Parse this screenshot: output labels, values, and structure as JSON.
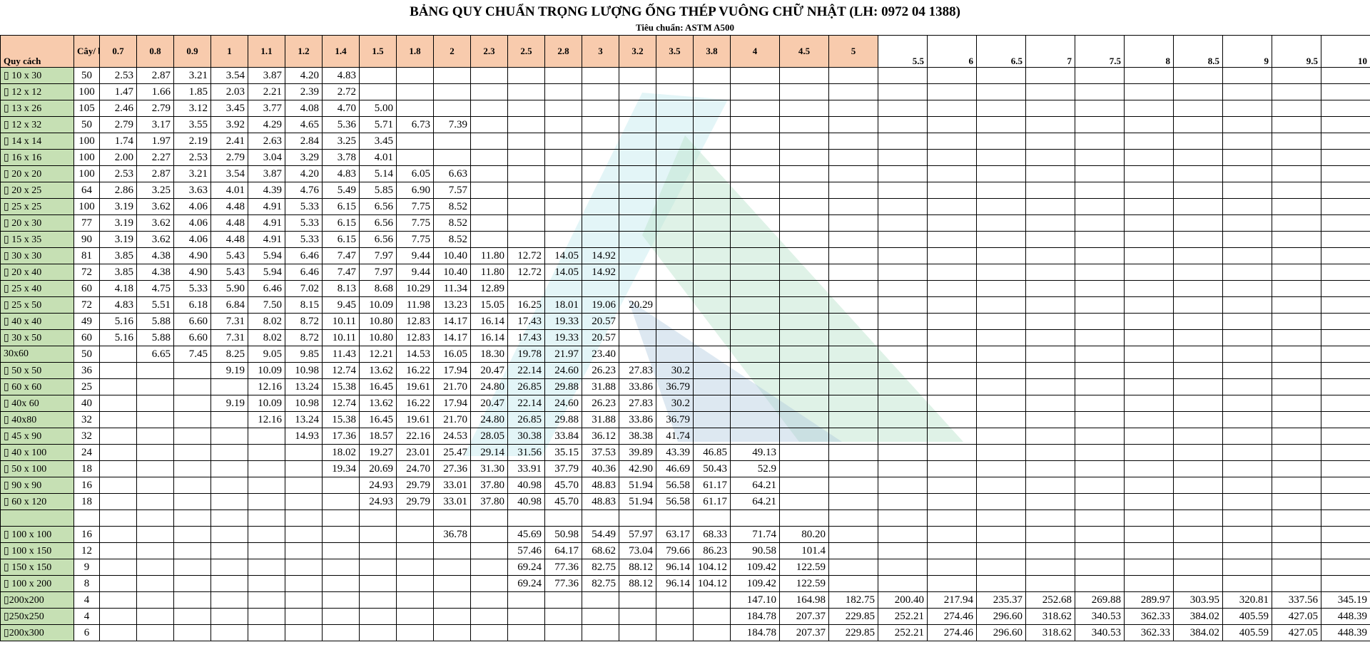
{
  "header": {
    "title": "BẢNG QUY CHUẨN TRỌNG LƯỢNG ỐNG THÉP VUÔNG CHỮ NHẬT (LH: 0972 04 1388)",
    "subtitle": "Tiêu chuẩn: ASTM A500"
  },
  "table": {
    "columns": [
      "Quy cách",
      "Cây/ bó",
      "0.7",
      "0.8",
      "0.9",
      "1",
      "1.1",
      "1.2",
      "1.4",
      "1.5",
      "1.8",
      "2",
      "2.3",
      "2.5",
      "2.8",
      "3",
      "3.2",
      "3.5",
      "3.8",
      "4",
      "4.5",
      "5",
      "5.5",
      "6",
      "6.5",
      "7",
      "7.5",
      "8",
      "8.5",
      "9",
      "9.5",
      "10"
    ],
    "rows": [
      [
        "▯ 10 x 30",
        "50",
        "2.53",
        "2.87",
        "3.21",
        "3.54",
        "3.87",
        "4.20",
        "4.83",
        null,
        null,
        null,
        null,
        null,
        null,
        null,
        null,
        null,
        null,
        null,
        null,
        null,
        null,
        null,
        null,
        null,
        null,
        null,
        null,
        null,
        null,
        null
      ],
      [
        "▯ 12 x 12",
        "100",
        "1.47",
        "1.66",
        "1.85",
        "2.03",
        "2.21",
        "2.39",
        "2.72",
        null,
        null,
        null,
        null,
        null,
        null,
        null,
        null,
        null,
        null,
        null,
        null,
        null,
        null,
        null,
        null,
        null,
        null,
        null,
        null,
        null,
        null,
        null
      ],
      [
        "▯ 13 x 26",
        "105",
        "2.46",
        "2.79",
        "3.12",
        "3.45",
        "3.77",
        "4.08",
        "4.70",
        "5.00",
        null,
        null,
        null,
        null,
        null,
        null,
        null,
        null,
        null,
        null,
        null,
        null,
        null,
        null,
        null,
        null,
        null,
        null,
        null,
        null,
        null,
        null
      ],
      [
        "▯ 12 x 32",
        "50",
        "2.79",
        "3.17",
        "3.55",
        "3.92",
        "4.29",
        "4.65",
        "5.36",
        "5.71",
        "6.73",
        "7.39",
        null,
        null,
        null,
        null,
        null,
        null,
        null,
        null,
        null,
        null,
        null,
        null,
        null,
        null,
        null,
        null,
        null,
        null,
        null,
        null
      ],
      [
        "▯ 14 x 14",
        "100",
        "1.74",
        "1.97",
        "2.19",
        "2.41",
        "2.63",
        "2.84",
        "3.25",
        "3.45",
        null,
        null,
        null,
        null,
        null,
        null,
        null,
        null,
        null,
        null,
        null,
        null,
        null,
        null,
        null,
        null,
        null,
        null,
        null,
        null,
        null,
        null
      ],
      [
        "▯ 16 x 16",
        "100",
        "2.00",
        "2.27",
        "2.53",
        "2.79",
        "3.04",
        "3.29",
        "3.78",
        "4.01",
        null,
        null,
        null,
        null,
        null,
        null,
        null,
        null,
        null,
        null,
        null,
        null,
        null,
        null,
        null,
        null,
        null,
        null,
        null,
        null,
        null,
        null
      ],
      [
        "▯ 20 x 20",
        "100",
        "2.53",
        "2.87",
        "3.21",
        "3.54",
        "3.87",
        "4.20",
        "4.83",
        "5.14",
        "6.05",
        "6.63",
        null,
        null,
        null,
        null,
        null,
        null,
        null,
        null,
        null,
        null,
        null,
        null,
        null,
        null,
        null,
        null,
        null,
        null,
        null,
        null
      ],
      [
        "▯ 20 x 25",
        "64",
        "2.86",
        "3.25",
        "3.63",
        "4.01",
        "4.39",
        "4.76",
        "5.49",
        "5.85",
        "6.90",
        "7.57",
        null,
        null,
        null,
        null,
        null,
        null,
        null,
        null,
        null,
        null,
        null,
        null,
        null,
        null,
        null,
        null,
        null,
        null,
        null,
        null
      ],
      [
        "▯ 25 x 25",
        "100",
        "3.19",
        "3.62",
        "4.06",
        "4.48",
        "4.91",
        "5.33",
        "6.15",
        "6.56",
        "7.75",
        "8.52",
        null,
        null,
        null,
        null,
        null,
        null,
        null,
        null,
        null,
        null,
        null,
        null,
        null,
        null,
        null,
        null,
        null,
        null,
        null,
        null
      ],
      [
        "▯ 20 x 30",
        "77",
        "3.19",
        "3.62",
        "4.06",
        "4.48",
        "4.91",
        "5.33",
        "6.15",
        "6.56",
        "7.75",
        "8.52",
        null,
        null,
        null,
        null,
        null,
        null,
        null,
        null,
        null,
        null,
        null,
        null,
        null,
        null,
        null,
        null,
        null,
        null,
        null,
        null
      ],
      [
        "▯ 15 x 35",
        "90",
        "3.19",
        "3.62",
        "4.06",
        "4.48",
        "4.91",
        "5.33",
        "6.15",
        "6.56",
        "7.75",
        "8.52",
        null,
        null,
        null,
        null,
        null,
        null,
        null,
        null,
        null,
        null,
        null,
        null,
        null,
        null,
        null,
        null,
        null,
        null,
        null,
        null
      ],
      [
        "▯ 30 x 30",
        "81",
        "3.85",
        "4.38",
        "4.90",
        "5.43",
        "5.94",
        "6.46",
        "7.47",
        "7.97",
        "9.44",
        "10.40",
        "11.80",
        "12.72",
        "14.05",
        "14.92",
        null,
        null,
        null,
        null,
        null,
        null,
        null,
        null,
        null,
        null,
        null,
        null,
        null,
        null,
        null,
        null
      ],
      [
        "▯ 20 x 40",
        "72",
        "3.85",
        "4.38",
        "4.90",
        "5.43",
        "5.94",
        "6.46",
        "7.47",
        "7.97",
        "9.44",
        "10.40",
        "11.80",
        "12.72",
        "14.05",
        "14.92",
        null,
        null,
        null,
        null,
        null,
        null,
        null,
        null,
        null,
        null,
        null,
        null,
        null,
        null,
        null,
        null
      ],
      [
        "▯ 25 x 40",
        "60",
        "4.18",
        "4.75",
        "5.33",
        "5.90",
        "6.46",
        "7.02",
        "8.13",
        "8.68",
        "10.29",
        "11.34",
        "12.89",
        null,
        null,
        null,
        null,
        null,
        null,
        null,
        null,
        null,
        null,
        null,
        null,
        null,
        null,
        null,
        null,
        null,
        null,
        null
      ],
      [
        "▯ 25 x 50",
        "72",
        "4.83",
        "5.51",
        "6.18",
        "6.84",
        "7.50",
        "8.15",
        "9.45",
        "10.09",
        "11.98",
        "13.23",
        "15.05",
        "16.25",
        "18.01",
        "19.06",
        "20.29",
        null,
        null,
        null,
        null,
        null,
        null,
        null,
        null,
        null,
        null,
        null,
        null,
        null,
        null,
        null
      ],
      [
        "▯ 40 x 40",
        "49",
        "5.16",
        "5.88",
        "6.60",
        "7.31",
        "8.02",
        "8.72",
        "10.11",
        "10.80",
        "12.83",
        "14.17",
        "16.14",
        "17.43",
        "19.33",
        "20.57",
        null,
        null,
        null,
        null,
        null,
        null,
        null,
        null,
        null,
        null,
        null,
        null,
        null,
        null,
        null,
        null
      ],
      [
        "▯ 30 x 50",
        "60",
        "5.16",
        "5.88",
        "6.60",
        "7.31",
        "8.02",
        "8.72",
        "10.11",
        "10.80",
        "12.83",
        "14.17",
        "16.14",
        "17.43",
        "19.33",
        "20.57",
        null,
        null,
        null,
        null,
        null,
        null,
        null,
        null,
        null,
        null,
        null,
        null,
        null,
        null,
        null,
        null
      ],
      [
        " 30x60",
        "50",
        null,
        "6.65",
        "7.45",
        "8.25",
        "9.05",
        "9.85",
        "11.43",
        "12.21",
        "14.53",
        "16.05",
        "18.30",
        "19.78",
        "21.97",
        "23.40",
        null,
        null,
        null,
        null,
        null,
        null,
        null,
        null,
        null,
        null,
        null,
        null,
        null,
        null,
        null,
        null
      ],
      [
        "▯ 50 x 50",
        "36",
        null,
        null,
        null,
        "9.19",
        "10.09",
        "10.98",
        "12.74",
        "13.62",
        "16.22",
        "17.94",
        "20.47",
        "22.14",
        "24.60",
        "26.23",
        "27.83",
        "30.2",
        null,
        null,
        null,
        null,
        null,
        null,
        null,
        null,
        null,
        null,
        null,
        null,
        null,
        null
      ],
      [
        "▯ 60 x 60",
        "25",
        null,
        null,
        null,
        null,
        "12.16",
        "13.24",
        "15.38",
        "16.45",
        "19.61",
        "21.70",
        "24.80",
        "26.85",
        "29.88",
        "31.88",
        "33.86",
        "36.79",
        null,
        null,
        null,
        null,
        null,
        null,
        null,
        null,
        null,
        null,
        null,
        null,
        null,
        null
      ],
      [
        "▯ 40x 60",
        "40",
        null,
        null,
        null,
        "9.19",
        "10.09",
        "10.98",
        "12.74",
        "13.62",
        "16.22",
        "17.94",
        "20.47",
        "22.14",
        "24.60",
        "26.23",
        "27.83",
        "30.2",
        null,
        null,
        null,
        null,
        null,
        null,
        null,
        null,
        null,
        null,
        null,
        null,
        null,
        null
      ],
      [
        "▯ 40x80",
        "32",
        null,
        null,
        null,
        null,
        "12.16",
        "13.24",
        "15.38",
        "16.45",
        "19.61",
        "21.70",
        "24.80",
        "26.85",
        "29.88",
        "31.88",
        "33.86",
        "36.79",
        null,
        null,
        null,
        null,
        null,
        null,
        null,
        null,
        null,
        null,
        null,
        null,
        null,
        null
      ],
      [
        "▯ 45 x 90",
        "32",
        null,
        null,
        null,
        null,
        null,
        "14.93",
        "17.36",
        "18.57",
        "22.16",
        "24.53",
        "28.05",
        "30.38",
        "33.84",
        "36.12",
        "38.38",
        "41.74",
        null,
        null,
        null,
        null,
        null,
        null,
        null,
        null,
        null,
        null,
        null,
        null,
        null,
        null
      ],
      [
        "▯ 40 x 100",
        "24",
        null,
        null,
        null,
        null,
        null,
        null,
        "18.02",
        "19.27",
        "23.01",
        "25.47",
        "29.14",
        "31.56",
        "35.15",
        "37.53",
        "39.89",
        "43.39",
        "46.85",
        "49.13",
        null,
        null,
        null,
        null,
        null,
        null,
        null,
        null,
        null,
        null,
        null,
        null
      ],
      [
        "▯ 50 x 100",
        "18",
        null,
        null,
        null,
        null,
        null,
        null,
        "19.34",
        "20.69",
        "24.70",
        "27.36",
        "31.30",
        "33.91",
        "37.79",
        "40.36",
        "42.90",
        "46.69",
        "50.43",
        "52.9",
        null,
        null,
        null,
        null,
        null,
        null,
        null,
        null,
        null,
        null,
        null,
        null
      ],
      [
        "▯ 90 x 90",
        "16",
        null,
        null,
        null,
        null,
        null,
        null,
        null,
        "24.93",
        "29.79",
        "33.01",
        "37.80",
        "40.98",
        "45.70",
        "48.83",
        "51.94",
        "56.58",
        "61.17",
        "64.21",
        null,
        null,
        null,
        null,
        null,
        null,
        null,
        null,
        null,
        null,
        null,
        null
      ],
      [
        "▯ 60 x 120",
        "18",
        null,
        null,
        null,
        null,
        null,
        null,
        null,
        "24.93",
        "29.79",
        "33.01",
        "37.80",
        "40.98",
        "45.70",
        "48.83",
        "51.94",
        "56.58",
        "61.17",
        "64.21",
        null,
        null,
        null,
        null,
        null,
        null,
        null,
        null,
        null,
        null,
        null,
        null
      ],
      [
        null,
        null,
        null,
        null,
        null,
        null,
        null,
        null,
        null,
        null,
        null,
        null,
        null,
        null,
        null,
        null,
        null,
        null,
        null,
        null,
        null,
        null,
        null,
        null,
        null,
        null,
        null,
        null,
        null,
        null,
        null,
        null
      ],
      [
        "▯ 100 x 100",
        "16",
        null,
        null,
        null,
        null,
        null,
        null,
        null,
        null,
        null,
        "36.78",
        null,
        "45.69",
        "50.98",
        "54.49",
        "57.97",
        "63.17",
        "68.33",
        "71.74",
        "80.20",
        null,
        null,
        null,
        null,
        null,
        null,
        null,
        null,
        null,
        null,
        null
      ],
      [
        "▯ 100 x 150",
        "12",
        null,
        null,
        null,
        null,
        null,
        null,
        null,
        null,
        null,
        null,
        null,
        "57.46",
        "64.17",
        "68.62",
        "73.04",
        "79.66",
        "86.23",
        "90.58",
        "101.4",
        null,
        null,
        null,
        null,
        null,
        null,
        null,
        null,
        null,
        null,
        null
      ],
      [
        "▯ 150 x 150",
        "9",
        null,
        null,
        null,
        null,
        null,
        null,
        null,
        null,
        null,
        null,
        null,
        "69.24",
        "77.36",
        "82.75",
        "88.12",
        "96.14",
        "104.12",
        "109.42",
        "122.59",
        null,
        null,
        null,
        null,
        null,
        null,
        null,
        null,
        null,
        null,
        null
      ],
      [
        "▯ 100 x 200",
        "8",
        null,
        null,
        null,
        null,
        null,
        null,
        null,
        null,
        null,
        null,
        null,
        "69.24",
        "77.36",
        "82.75",
        "88.12",
        "96.14",
        "104.12",
        "109.42",
        "122.59",
        null,
        null,
        null,
        null,
        null,
        null,
        null,
        null,
        null,
        null,
        null
      ],
      [
        "▯200x200",
        "4",
        null,
        null,
        null,
        null,
        null,
        null,
        null,
        null,
        null,
        null,
        null,
        null,
        null,
        null,
        null,
        null,
        null,
        "147.10",
        "164.98",
        "182.75",
        "200.40",
        "217.94",
        "235.37",
        "252.68",
        "269.88",
        "289.97",
        "303.95",
        "320.81",
        "337.56",
        "345.19"
      ],
      [
        "▯250x250",
        "4",
        null,
        null,
        null,
        null,
        null,
        null,
        null,
        null,
        null,
        null,
        null,
        null,
        null,
        null,
        null,
        null,
        null,
        "184.78",
        "207.37",
        "229.85",
        "252.21",
        "274.46",
        "296.60",
        "318.62",
        "340.53",
        "362.33",
        "384.02",
        "405.59",
        "427.05",
        "448.39"
      ],
      [
        "▯200x300",
        "6",
        null,
        null,
        null,
        null,
        null,
        null,
        null,
        null,
        null,
        null,
        null,
        null,
        null,
        null,
        null,
        null,
        null,
        "184.78",
        "207.37",
        "229.85",
        "252.21",
        "274.46",
        "296.60",
        "318.62",
        "340.53",
        "362.33",
        "384.02",
        "405.59",
        "427.05",
        "448.39"
      ]
    ]
  }
}
